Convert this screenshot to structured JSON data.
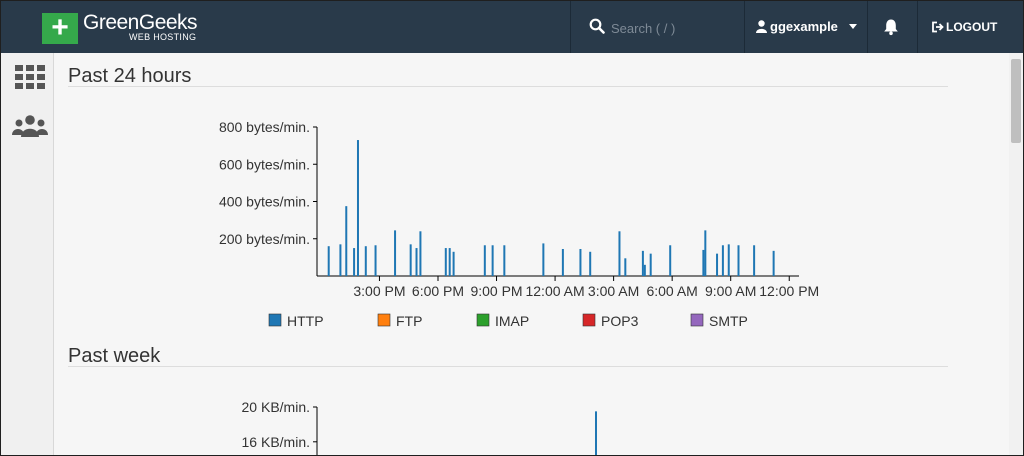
{
  "brand": {
    "name": "GreenGeeks",
    "tagline": "WEB HOSTING",
    "logo_symbol": "+",
    "logo_color": "#35a94b"
  },
  "search": {
    "placeholder": "Search ( / )",
    "icon": "search-icon"
  },
  "user": {
    "name": "ggexample",
    "icon": "user-icon"
  },
  "notifications": {
    "icon": "bell-icon"
  },
  "logout": {
    "label": "LOGOUT",
    "icon": "sign-out-icon"
  },
  "sidebar": {
    "items": [
      {
        "icon": "grid-icon"
      },
      {
        "icon": "users-icon"
      }
    ]
  },
  "colors": {
    "topbar": "#293a4a",
    "http": "#1f77b4",
    "ftp": "#ff7f0e",
    "imap": "#2ca02c",
    "pop3": "#d62728",
    "smtp": "#9467bd"
  },
  "sections": {
    "past24": "Past 24 hours",
    "pastweek": "Past week"
  },
  "chart_data": [
    {
      "type": "bar",
      "title": "Past 24 hours",
      "ylabel": "",
      "y_ticks": [
        "200 bytes/min.",
        "400 bytes/min.",
        "600 bytes/min.",
        "800 bytes/min."
      ],
      "x_ticks": [
        "3:00 PM",
        "6:00 PM",
        "9:00 PM",
        "12:00 AM",
        "3:00 AM",
        "6:00 AM",
        "9:00 AM",
        "12:00 PM"
      ],
      "x_tick_hours": [
        3,
        6,
        9,
        12,
        15,
        18,
        21,
        24
      ],
      "xlim_hours": [
        -0.2,
        24.5
      ],
      "ylim": [
        0,
        800
      ],
      "legend": [
        {
          "label": "HTTP",
          "color": "#1f77b4"
        },
        {
          "label": "FTP",
          "color": "#ff7f0e"
        },
        {
          "label": "IMAP",
          "color": "#2ca02c"
        },
        {
          "label": "POP3",
          "color": "#d62728"
        },
        {
          "label": "SMTP",
          "color": "#9467bd"
        }
      ],
      "series": [
        {
          "name": "HTTP",
          "x_hours": [
            0.4,
            1.0,
            1.3,
            1.7,
            1.9,
            2.3,
            2.8,
            3.8,
            4.6,
            4.9,
            5.1,
            6.4,
            6.6,
            6.8,
            8.4,
            8.8,
            9.4,
            11.4,
            12.4,
            13.3,
            13.8,
            15.3,
            15.6,
            16.5,
            16.6,
            16.9,
            17.9,
            19.6,
            19.7,
            20.3,
            20.6,
            20.9,
            21.4,
            22.2,
            23.2
          ],
          "values": [
            160,
            170,
            375,
            150,
            730,
            160,
            165,
            245,
            170,
            150,
            240,
            150,
            150,
            130,
            165,
            165,
            165,
            175,
            145,
            145,
            130,
            240,
            95,
            135,
            60,
            120,
            165,
            140,
            245,
            120,
            165,
            170,
            165,
            165,
            135
          ]
        }
      ]
    },
    {
      "type": "bar",
      "title": "Past week",
      "y_ticks": [
        "16 KB/min.",
        "20 KB/min."
      ],
      "ylim": [
        0,
        20
      ],
      "series": [
        {
          "name": "HTTP",
          "values": [
            19.5
          ]
        }
      ]
    }
  ]
}
